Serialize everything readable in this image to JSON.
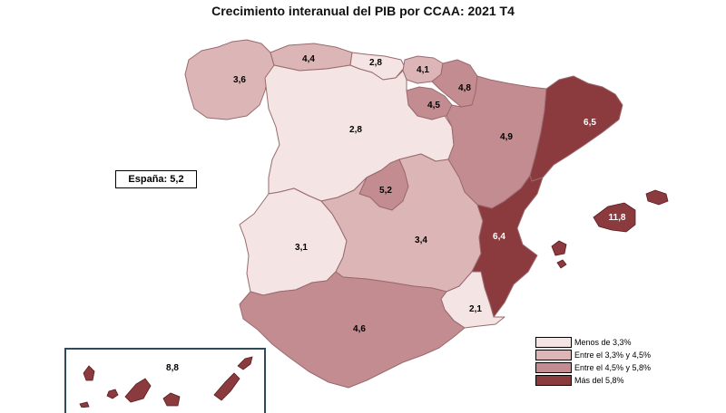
{
  "title": "Crecimiento interanual del PIB por CCAA: 2021 T4",
  "national": {
    "label": "España: 5,2"
  },
  "colors": {
    "low": "#f4e4e4",
    "mid": "#dcb5b7",
    "high": "#c38c90",
    "top": "#8b3a3e"
  },
  "regions": {
    "galicia": {
      "value": "3,6",
      "bin": "mid"
    },
    "asturias": {
      "value": "4,4",
      "bin": "mid"
    },
    "cantabria": {
      "value": "2,8",
      "bin": "low"
    },
    "pais_vasco": {
      "value": "4,1",
      "bin": "mid"
    },
    "navarra": {
      "value": "4,8",
      "bin": "high"
    },
    "la_rioja": {
      "value": "4,5",
      "bin": "high"
    },
    "castilla_leon": {
      "value": "2,8",
      "bin": "low"
    },
    "aragon": {
      "value": "4,9",
      "bin": "high"
    },
    "cataluna": {
      "value": "6,5",
      "bin": "top"
    },
    "madrid": {
      "value": "5,2",
      "bin": "high"
    },
    "extremadura": {
      "value": "3,1",
      "bin": "low"
    },
    "castilla_la_mancha": {
      "value": "3,4",
      "bin": "mid"
    },
    "c_valenciana": {
      "value": "6,4",
      "bin": "top"
    },
    "baleares": {
      "value": "11,8",
      "bin": "top"
    },
    "murcia": {
      "value": "2,1",
      "bin": "low"
    },
    "andalucia": {
      "value": "4,6",
      "bin": "high"
    },
    "canarias": {
      "value": "8,8",
      "bin": "top"
    }
  },
  "legend": [
    {
      "label": "Menos de 3,3%",
      "bin": "low"
    },
    {
      "label": "Entre el 3,3% y 4,5%",
      "bin": "mid"
    },
    {
      "label": "Entre el 4,5% y 5,8%",
      "bin": "high"
    },
    {
      "label": "Más del 5,8%",
      "bin": "top"
    }
  ]
}
